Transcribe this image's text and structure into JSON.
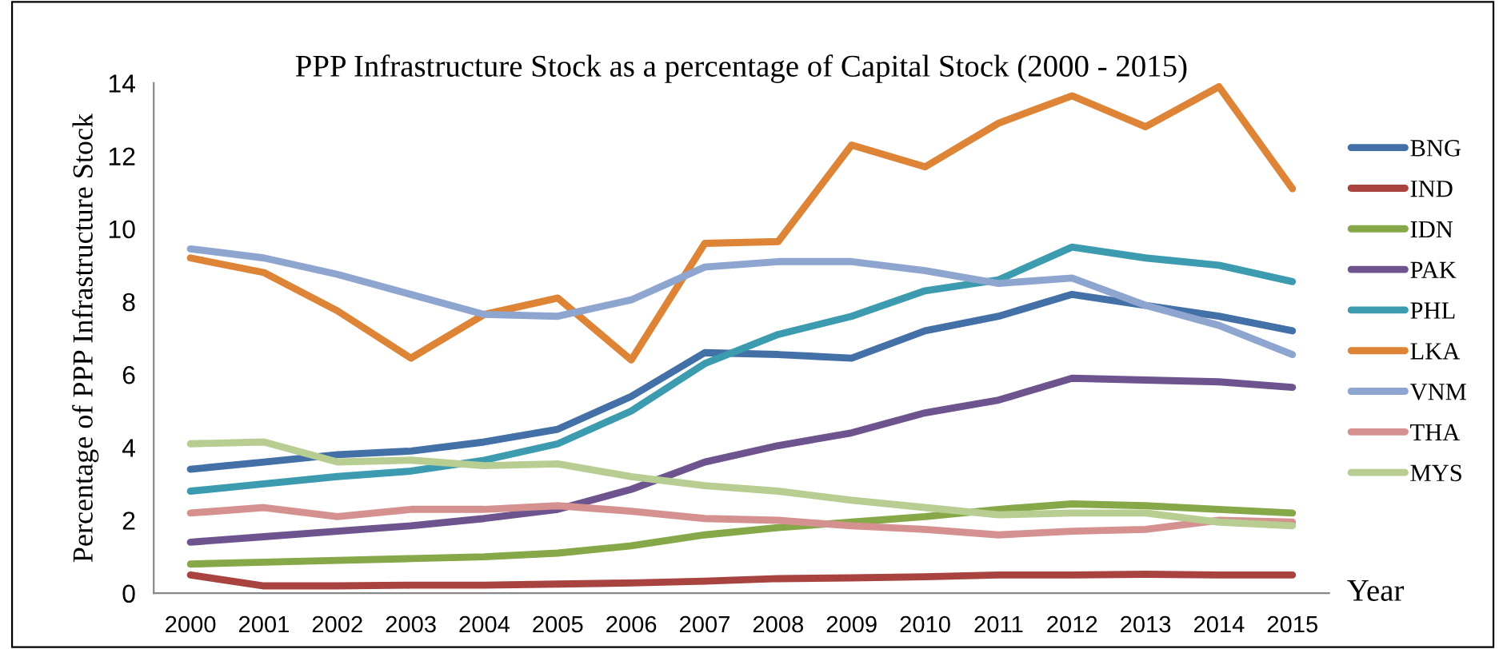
{
  "chart_data": {
    "type": "line",
    "title": "PPP Infrastructure Stock as a percentage of Capital Stock (2000 - 2015)",
    "xlabel": "Year",
    "ylabel": "Percentage of PPP Infrastructure Stock",
    "categories": [
      "2000",
      "2001",
      "2002",
      "2003",
      "2004",
      "2005",
      "2006",
      "2007",
      "2008",
      "2009",
      "2010",
      "2011",
      "2012",
      "2013",
      "2014",
      "2015"
    ],
    "ylim": [
      0,
      14
    ],
    "yticks": [
      0,
      2,
      4,
      6,
      8,
      10,
      12,
      14
    ],
    "grid": false,
    "legend": "right",
    "marker": "none",
    "line_style": "solid",
    "series": [
      {
        "name": "BNG",
        "color": "#4470a8",
        "values": [
          3.4,
          3.6,
          3.8,
          3.9,
          4.15,
          4.5,
          5.4,
          6.6,
          6.55,
          6.45,
          7.2,
          7.6,
          8.2,
          7.9,
          7.6,
          7.2
        ]
      },
      {
        "name": "IND",
        "color": "#a84340",
        "values": [
          0.5,
          0.2,
          0.2,
          0.22,
          0.22,
          0.25,
          0.28,
          0.33,
          0.4,
          0.42,
          0.45,
          0.5,
          0.5,
          0.52,
          0.5,
          0.5
        ]
      },
      {
        "name": "IDN",
        "color": "#86a848",
        "values": [
          0.8,
          0.85,
          0.9,
          0.95,
          1.0,
          1.1,
          1.3,
          1.6,
          1.8,
          1.95,
          2.1,
          2.3,
          2.45,
          2.4,
          2.3,
          2.2
        ]
      },
      {
        "name": "PAK",
        "color": "#6e548e",
        "values": [
          1.4,
          1.55,
          1.7,
          1.85,
          2.05,
          2.3,
          2.85,
          3.6,
          4.05,
          4.4,
          4.95,
          5.3,
          5.9,
          5.85,
          5.8,
          5.65
        ]
      },
      {
        "name": "PHL",
        "color": "#3d9bb0",
        "values": [
          2.8,
          3.0,
          3.2,
          3.35,
          3.65,
          4.1,
          5.0,
          6.3,
          7.1,
          7.6,
          8.3,
          8.6,
          9.5,
          9.2,
          9.0,
          8.55
        ]
      },
      {
        "name": "LKA",
        "color": "#de8436",
        "values": [
          9.2,
          8.8,
          7.75,
          6.45,
          7.65,
          8.1,
          6.4,
          9.6,
          9.65,
          12.3,
          11.7,
          12.9,
          13.65,
          12.8,
          13.9,
          11.1
        ]
      },
      {
        "name": "VNM",
        "color": "#8ea6cf",
        "values": [
          9.45,
          9.2,
          8.75,
          8.2,
          7.65,
          7.6,
          8.05,
          8.95,
          9.1,
          9.1,
          8.85,
          8.5,
          8.65,
          7.9,
          7.35,
          6.55
        ]
      },
      {
        "name": "THA",
        "color": "#d49190",
        "values": [
          2.2,
          2.35,
          2.1,
          2.3,
          2.3,
          2.4,
          2.25,
          2.05,
          2.0,
          1.85,
          1.75,
          1.6,
          1.7,
          1.75,
          2.0,
          1.95
        ]
      },
      {
        "name": "MYS",
        "color": "#b7cd92",
        "values": [
          4.1,
          4.15,
          3.6,
          3.65,
          3.5,
          3.55,
          3.2,
          2.95,
          2.8,
          2.55,
          2.35,
          2.15,
          2.2,
          2.2,
          1.95,
          1.85
        ]
      }
    ]
  }
}
